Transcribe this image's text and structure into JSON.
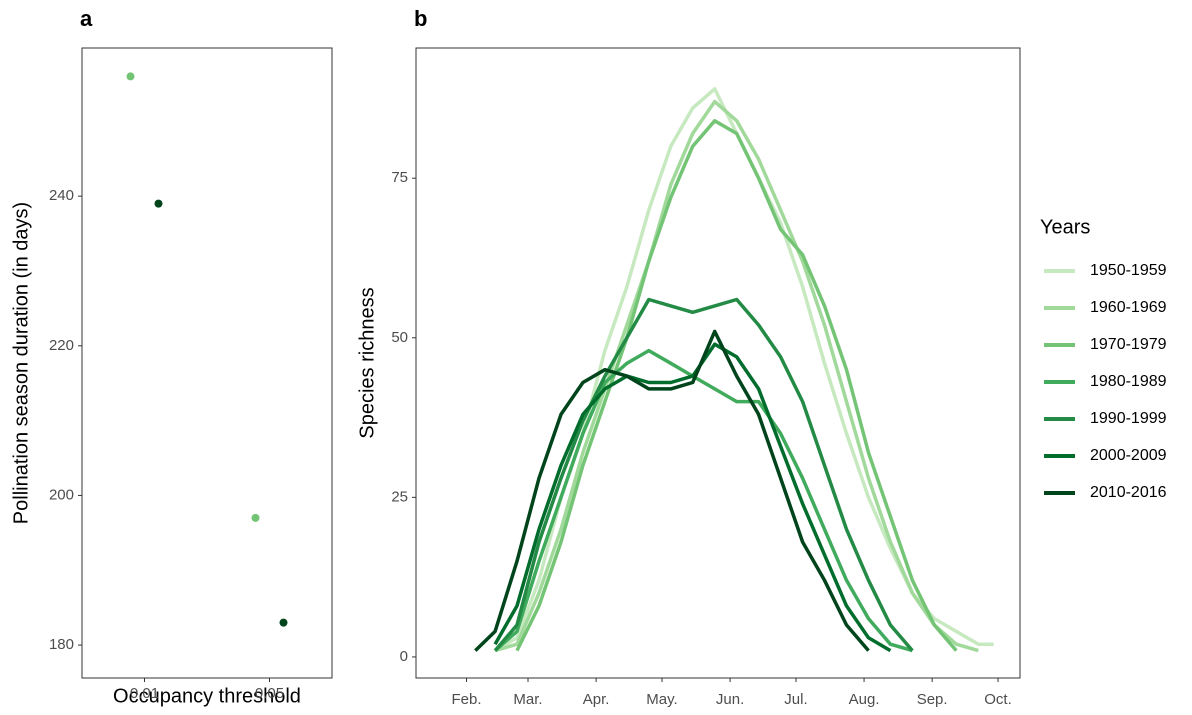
{
  "chart_data": [
    {
      "type": "scatter",
      "title": "a",
      "x_label": "Occupancy threshold",
      "y_label": "Pollination season duration (in days)",
      "categories": [
        "0.01",
        "0.05"
      ],
      "series": [
        {
          "color": "#74c476",
          "values": [
            256,
            197
          ]
        },
        {
          "color": "#00441b",
          "values": [
            239,
            183
          ]
        }
      ],
      "ylim": [
        175.6,
        259.8
      ],
      "yticks": [
        180,
        200,
        220,
        240
      ],
      "grid": false
    },
    {
      "type": "line",
      "title": "b",
      "y_label": "Species richness",
      "legend_title": "Years",
      "legend": "right",
      "x": [
        36,
        45,
        55,
        65,
        75,
        85,
        95,
        105,
        115,
        125,
        135,
        145,
        155,
        165,
        175,
        185,
        195,
        205,
        215,
        225,
        235,
        245,
        255,
        265,
        272
      ],
      "xlim": [
        9,
        284
      ],
      "xticks": [
        {
          "value": 32,
          "label": "Feb."
        },
        {
          "value": 60,
          "label": "Mar."
        },
        {
          "value": 91,
          "label": "Apr."
        },
        {
          "value": 121,
          "label": "May."
        },
        {
          "value": 152,
          "label": "Jun."
        },
        {
          "value": 182,
          "label": "Jul."
        },
        {
          "value": 213,
          "label": "Aug."
        },
        {
          "value": 244,
          "label": "Sep."
        },
        {
          "value": 274,
          "label": "Oct."
        }
      ],
      "ylim": [
        -3.3,
        95.4
      ],
      "yticks": [
        0,
        25,
        50,
        75
      ],
      "grid": false,
      "series": [
        {
          "name": "1950-1959",
          "color": "#c7e9c0",
          "values": [
            null,
            1,
            3,
            12,
            25,
            35,
            48,
            58,
            70,
            80,
            86,
            89,
            82,
            75,
            68,
            58,
            46,
            35,
            25,
            17,
            10,
            6,
            4,
            2,
            2
          ]
        },
        {
          "name": "1960-1969",
          "color": "#a1d99b",
          "values": [
            null,
            1,
            2,
            10,
            20,
            32,
            42,
            52,
            62,
            74,
            82,
            87,
            84,
            78,
            70,
            62,
            52,
            40,
            28,
            18,
            10,
            5,
            2,
            1,
            null
          ]
        },
        {
          "name": "1970-1979",
          "color": "#74c476",
          "values": [
            null,
            null,
            1,
            8,
            18,
            30,
            40,
            50,
            62,
            72,
            80,
            84,
            82,
            75,
            67,
            63,
            55,
            45,
            32,
            22,
            12,
            5,
            1,
            null,
            null
          ]
        },
        {
          "name": "1980-1989",
          "color": "#41ab5d",
          "values": [
            null,
            1,
            4,
            15,
            25,
            35,
            43,
            46,
            48,
            46,
            44,
            42,
            40,
            40,
            35,
            28,
            20,
            12,
            6,
            2,
            1,
            null,
            null,
            null,
            null
          ]
        },
        {
          "name": "1990-1999",
          "color": "#238b45",
          "values": [
            null,
            1,
            5,
            18,
            28,
            37,
            44,
            50,
            56,
            55,
            54,
            55,
            56,
            52,
            47,
            40,
            30,
            20,
            12,
            5,
            1,
            null,
            null,
            null,
            null
          ]
        },
        {
          "name": "2000-2009",
          "color": "#006d2c",
          "values": [
            null,
            2,
            8,
            20,
            30,
            38,
            42,
            44,
            43,
            43,
            44,
            49,
            47,
            42,
            33,
            24,
            16,
            8,
            3,
            1,
            null,
            null,
            null,
            null,
            null
          ]
        },
        {
          "name": "2010-2016",
          "color": "#00441b",
          "values": [
            1,
            4,
            15,
            28,
            38,
            43,
            45,
            44,
            42,
            42,
            43,
            51,
            44,
            38,
            28,
            18,
            12,
            5,
            1,
            null,
            null,
            null,
            null,
            null,
            null
          ]
        }
      ]
    }
  ]
}
